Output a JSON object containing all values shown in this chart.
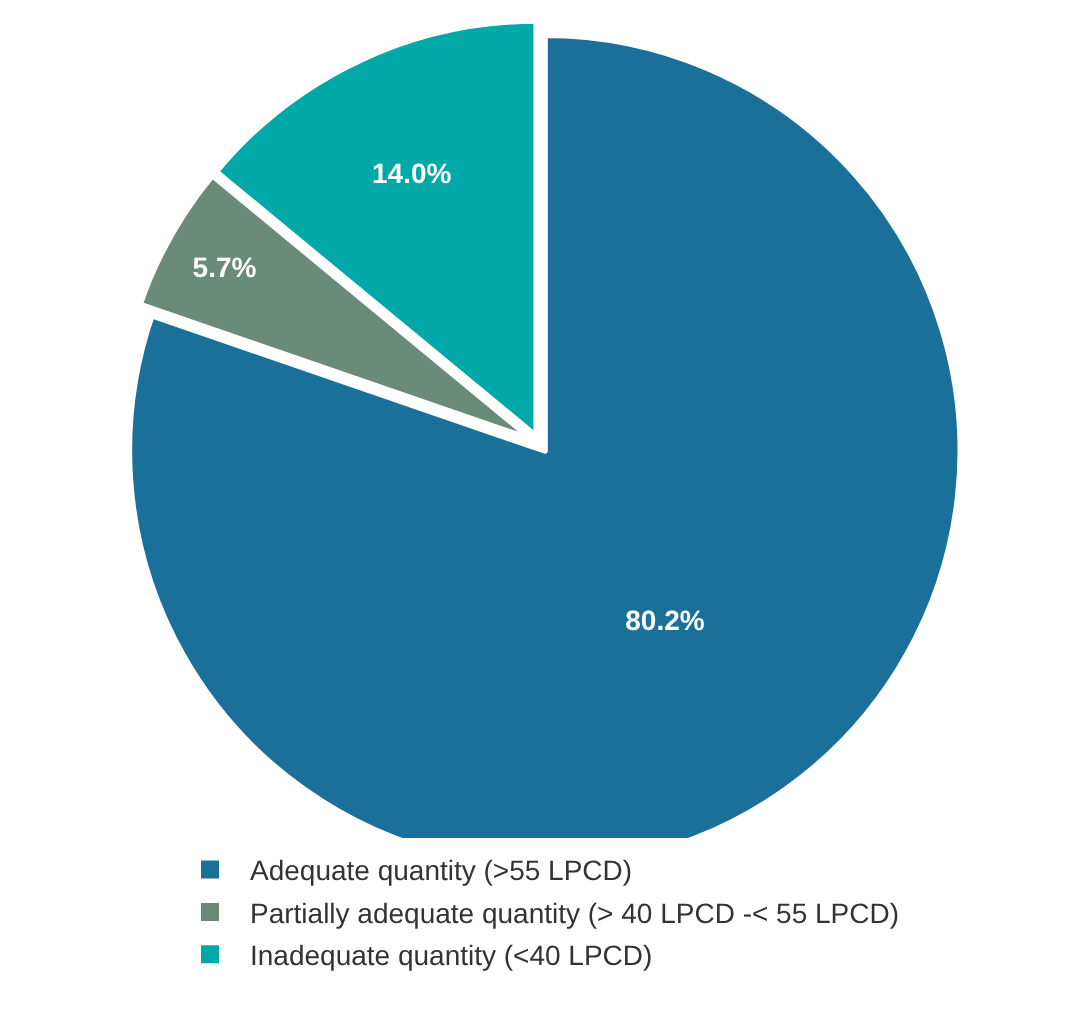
{
  "chart_data": {
    "type": "pie",
    "categories": [
      "Adequate quantity (>55 LPCD)",
      "Partially adequate quantity (> 40 LPCD -< 55 LPCD)",
      "Inadequate quantity (<40 LPCD)"
    ],
    "values": [
      80.2,
      5.7,
      14.0
    ],
    "colors": [
      "#1a7099",
      "#6a8a7a",
      "#00a8a8"
    ],
    "value_labels": [
      "80.2%",
      "5.7%",
      "14.0%"
    ],
    "legend": "bottom"
  }
}
